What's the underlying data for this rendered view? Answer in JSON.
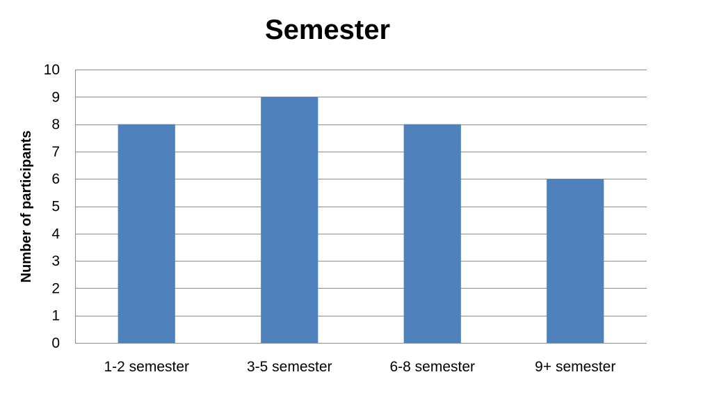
{
  "chart_data": {
    "type": "bar",
    "title": "Semester",
    "xlabel": "",
    "ylabel": "Number of participants",
    "categories": [
      "1-2 semester",
      "3-5 semester",
      "6-8 semester",
      "9+ semester"
    ],
    "values": [
      8,
      9,
      8,
      6
    ],
    "ylim": [
      0,
      10
    ],
    "yticks": [
      0,
      1,
      2,
      3,
      4,
      5,
      6,
      7,
      8,
      9,
      10
    ],
    "grid": true,
    "legend": "none",
    "bar_color": "#4f81bd"
  }
}
